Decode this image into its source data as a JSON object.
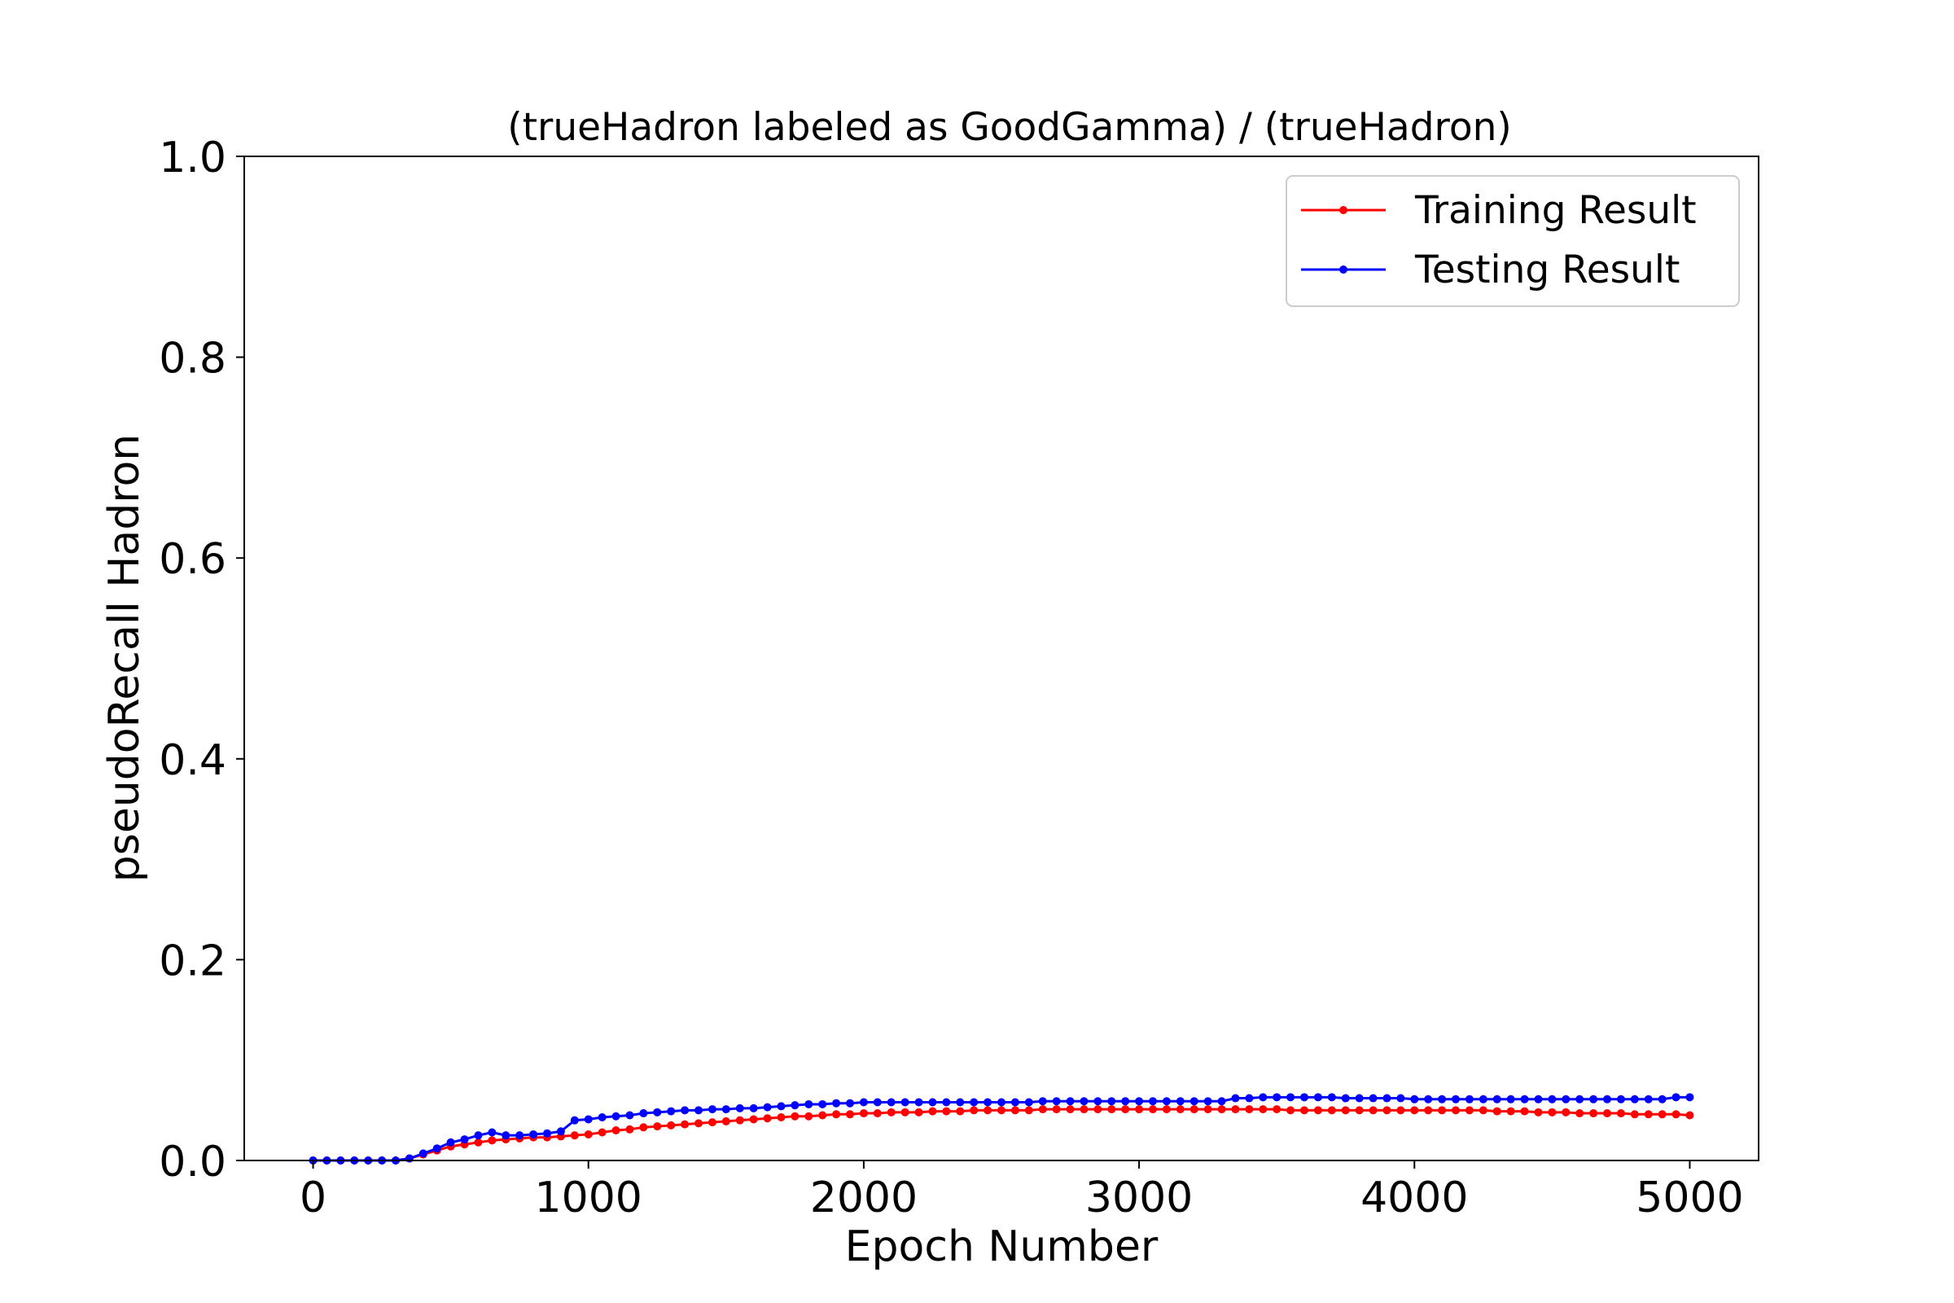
{
  "chart_data": {
    "type": "line",
    "title": "(trueHadron labeled as GoodGamma) / (trueHadron)",
    "xlabel": "Epoch Number",
    "ylabel": "pseudoRecall Hadron",
    "xlim": [
      -250,
      5250
    ],
    "ylim": [
      0.0,
      1.0
    ],
    "xticks": [
      0,
      1000,
      2000,
      3000,
      4000,
      5000
    ],
    "xtick_labels": [
      "0",
      "1000",
      "2000",
      "3000",
      "4000",
      "5000"
    ],
    "yticks": [
      0.0,
      0.2,
      0.4,
      0.6,
      0.8,
      1.0
    ],
    "ytick_labels": [
      "0.0",
      "0.2",
      "0.4",
      "0.6",
      "0.8",
      "1.0"
    ],
    "grid": false,
    "legend_position": "top-right",
    "series": [
      {
        "name": "Training Result",
        "color": "#ff0000",
        "x": [
          0,
          50,
          100,
          150,
          200,
          250,
          300,
          350,
          400,
          450,
          500,
          550,
          600,
          650,
          700,
          750,
          800,
          850,
          900,
          950,
          1000,
          1050,
          1100,
          1150,
          1200,
          1250,
          1300,
          1350,
          1400,
          1450,
          1500,
          1550,
          1600,
          1650,
          1700,
          1750,
          1800,
          1850,
          1900,
          1950,
          2000,
          2050,
          2100,
          2150,
          2200,
          2250,
          2300,
          2350,
          2400,
          2450,
          2500,
          2550,
          2600,
          2650,
          2700,
          2750,
          2800,
          2850,
          2900,
          2950,
          3000,
          3050,
          3100,
          3150,
          3200,
          3250,
          3300,
          3350,
          3400,
          3450,
          3500,
          3550,
          3600,
          3650,
          3700,
          3750,
          3800,
          3850,
          3900,
          3950,
          4000,
          4050,
          4100,
          4150,
          4200,
          4250,
          4300,
          4350,
          4400,
          4450,
          4500,
          4550,
          4600,
          4650,
          4700,
          4750,
          4800,
          4850,
          4900,
          4950,
          5000
        ],
        "y": [
          0.0,
          0.0,
          0.0,
          0.0,
          0.0,
          0.0,
          0.0,
          0.002,
          0.006,
          0.01,
          0.014,
          0.016,
          0.018,
          0.02,
          0.021,
          0.022,
          0.023,
          0.023,
          0.024,
          0.025,
          0.026,
          0.028,
          0.03,
          0.031,
          0.033,
          0.034,
          0.035,
          0.036,
          0.037,
          0.038,
          0.039,
          0.04,
          0.041,
          0.042,
          0.043,
          0.044,
          0.044,
          0.045,
          0.046,
          0.046,
          0.047,
          0.047,
          0.048,
          0.048,
          0.048,
          0.049,
          0.049,
          0.049,
          0.05,
          0.05,
          0.05,
          0.05,
          0.05,
          0.051,
          0.051,
          0.051,
          0.051,
          0.051,
          0.051,
          0.051,
          0.051,
          0.051,
          0.051,
          0.051,
          0.051,
          0.051,
          0.051,
          0.051,
          0.051,
          0.051,
          0.051,
          0.05,
          0.05,
          0.05,
          0.05,
          0.05,
          0.05,
          0.05,
          0.05,
          0.05,
          0.05,
          0.05,
          0.05,
          0.05,
          0.05,
          0.05,
          0.049,
          0.049,
          0.049,
          0.048,
          0.048,
          0.048,
          0.047,
          0.047,
          0.047,
          0.047,
          0.046,
          0.046,
          0.046,
          0.046,
          0.045
        ]
      },
      {
        "name": "Testing Result",
        "color": "#0000ff",
        "x": [
          0,
          50,
          100,
          150,
          200,
          250,
          300,
          350,
          400,
          450,
          500,
          550,
          600,
          650,
          700,
          750,
          800,
          850,
          900,
          950,
          1000,
          1050,
          1100,
          1150,
          1200,
          1250,
          1300,
          1350,
          1400,
          1450,
          1500,
          1550,
          1600,
          1650,
          1700,
          1750,
          1800,
          1850,
          1900,
          1950,
          2000,
          2050,
          2100,
          2150,
          2200,
          2250,
          2300,
          2350,
          2400,
          2450,
          2500,
          2550,
          2600,
          2650,
          2700,
          2750,
          2800,
          2850,
          2900,
          2950,
          3000,
          3050,
          3100,
          3150,
          3200,
          3250,
          3300,
          3350,
          3400,
          3450,
          3500,
          3550,
          3600,
          3650,
          3700,
          3750,
          3800,
          3850,
          3900,
          3950,
          4000,
          4050,
          4100,
          4150,
          4200,
          4250,
          4300,
          4350,
          4400,
          4450,
          4500,
          4550,
          4600,
          4650,
          4700,
          4750,
          4800,
          4850,
          4900,
          4950,
          5000
        ],
        "y": [
          0.0,
          0.0,
          0.0,
          0.0,
          0.0,
          0.0,
          0.0,
          0.002,
          0.007,
          0.012,
          0.018,
          0.021,
          0.025,
          0.028,
          0.025,
          0.025,
          0.026,
          0.027,
          0.029,
          0.04,
          0.041,
          0.043,
          0.044,
          0.045,
          0.047,
          0.048,
          0.049,
          0.05,
          0.05,
          0.051,
          0.051,
          0.052,
          0.052,
          0.053,
          0.054,
          0.055,
          0.056,
          0.056,
          0.057,
          0.057,
          0.058,
          0.058,
          0.058,
          0.058,
          0.058,
          0.058,
          0.058,
          0.058,
          0.058,
          0.058,
          0.058,
          0.058,
          0.058,
          0.059,
          0.059,
          0.059,
          0.059,
          0.059,
          0.059,
          0.059,
          0.059,
          0.059,
          0.059,
          0.059,
          0.059,
          0.059,
          0.059,
          0.062,
          0.062,
          0.063,
          0.063,
          0.063,
          0.063,
          0.063,
          0.063,
          0.062,
          0.062,
          0.062,
          0.062,
          0.062,
          0.061,
          0.061,
          0.061,
          0.061,
          0.061,
          0.061,
          0.061,
          0.061,
          0.061,
          0.061,
          0.061,
          0.061,
          0.061,
          0.061,
          0.061,
          0.061,
          0.061,
          0.061,
          0.061,
          0.063,
          0.063
        ]
      }
    ]
  }
}
